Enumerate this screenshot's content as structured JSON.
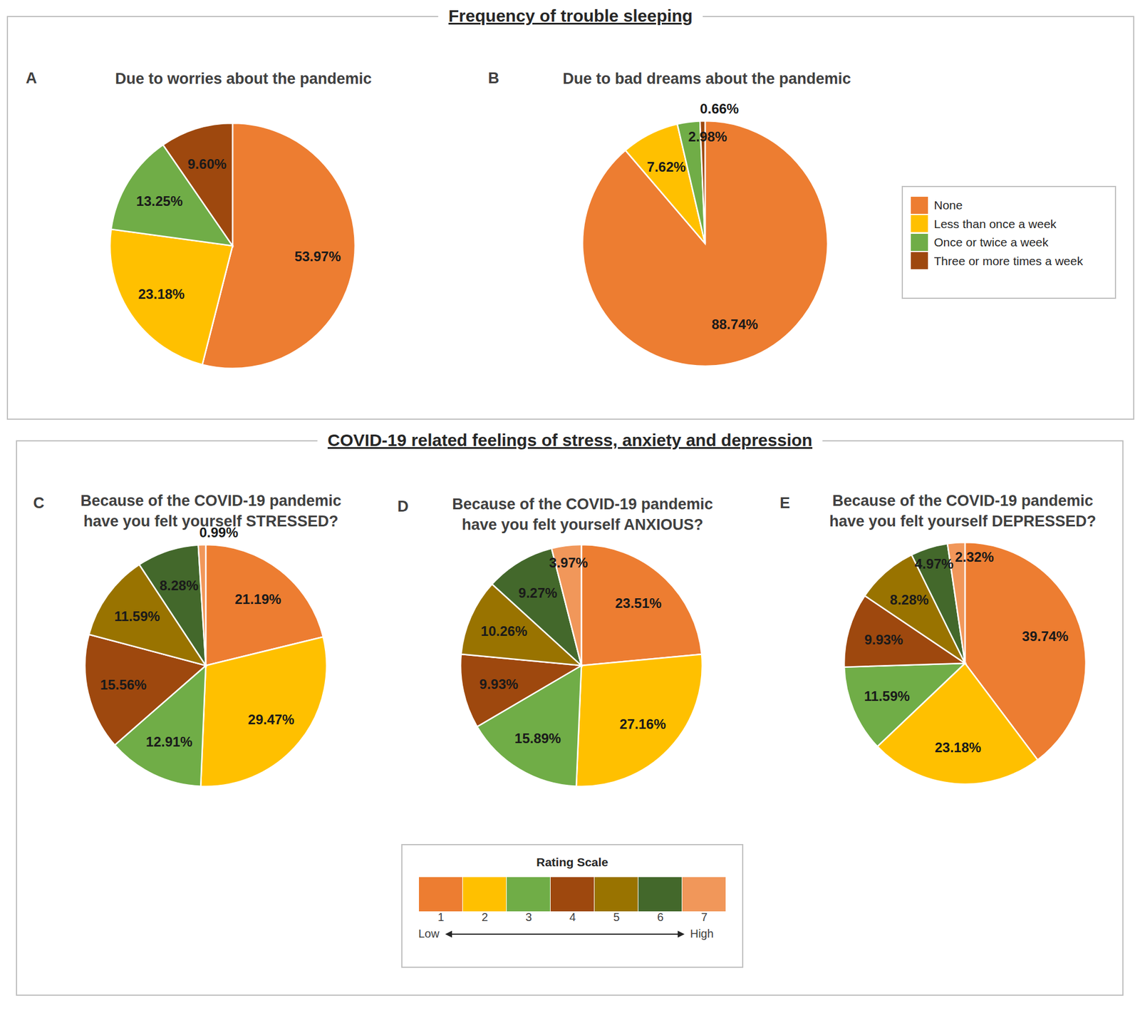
{
  "sections": [
    {
      "title": "Frequency of trouble sleeping",
      "legend_categories": [
        "None",
        "Less than once a week",
        "Once or twice a week",
        "Three or more times a week"
      ],
      "legend_colors": [
        "#ED7D31",
        "#FFC000",
        "#70AD47",
        "#9E480E"
      ]
    },
    {
      "title": "COVID-19 related feelings of stress, anxiety and depression",
      "legend_title": "Rating Scale",
      "legend_categories": [
        "1",
        "2",
        "3",
        "4",
        "5",
        "6",
        "7"
      ],
      "legend_colors": [
        "#ED7D31",
        "#FFC000",
        "#70AD47",
        "#9E480E",
        "#997300",
        "#43682B",
        "#F1975A"
      ],
      "scale_ends": [
        "Low",
        "High"
      ]
    }
  ],
  "chart_data": [
    {
      "type": "pie",
      "panel": "A",
      "title": "Due to worries about the pandemic",
      "categories": [
        "None",
        "Less than once a week",
        "Once or twice a week",
        "Three or more times a week"
      ],
      "values": [
        53.97,
        23.18,
        13.25,
        9.6
      ],
      "value_labels": [
        "53.97%",
        "23.18%",
        "13.25%",
        "9.60%"
      ],
      "colors": [
        "#ED7D31",
        "#FFC000",
        "#70AD47",
        "#9E480E"
      ],
      "data_labels": true
    },
    {
      "type": "pie",
      "panel": "B",
      "title": "Due to bad dreams about the pandemic",
      "categories": [
        "None",
        "Less than once a week",
        "Once or twice a week",
        "Three or more times a week"
      ],
      "values": [
        88.74,
        7.62,
        2.98,
        0.66
      ],
      "value_labels": [
        "88.74%",
        "7.62%",
        "2.98%",
        "0.66%"
      ],
      "colors": [
        "#ED7D31",
        "#FFC000",
        "#70AD47",
        "#9E480E"
      ],
      "data_labels": true
    },
    {
      "type": "pie",
      "panel": "C",
      "title": "Because of the COVID-19 pandemic have you felt yourself STRESSED?",
      "categories": [
        "1",
        "2",
        "3",
        "4",
        "5",
        "6",
        "7"
      ],
      "values": [
        21.19,
        29.47,
        12.91,
        15.56,
        11.59,
        8.28,
        0.99
      ],
      "value_labels": [
        "21.19%",
        "29.47%",
        "12.91%",
        "15.56%",
        "11.59%",
        "8.28%",
        "0.99%"
      ],
      "colors": [
        "#ED7D31",
        "#FFC000",
        "#70AD47",
        "#9E480E",
        "#997300",
        "#43682B",
        "#F1975A"
      ],
      "data_labels": true
    },
    {
      "type": "pie",
      "panel": "D",
      "title": "Because of the COVID-19 pandemic have you felt yourself ANXIOUS?",
      "categories": [
        "1",
        "2",
        "3",
        "4",
        "5",
        "6",
        "7"
      ],
      "values": [
        23.51,
        27.16,
        15.89,
        9.93,
        10.26,
        9.27,
        3.97
      ],
      "value_labels": [
        "23.51%",
        "27.16%",
        "15.89%",
        "9.93%",
        "10.26%",
        "9.27%",
        "3.97%"
      ],
      "colors": [
        "#ED7D31",
        "#FFC000",
        "#70AD47",
        "#9E480E",
        "#997300",
        "#43682B",
        "#F1975A"
      ],
      "data_labels": true
    },
    {
      "type": "pie",
      "panel": "E",
      "title": "Because of the COVID-19 pandemic have you felt yourself DEPRESSED?",
      "categories": [
        "1",
        "2",
        "3",
        "4",
        "5",
        "6",
        "7"
      ],
      "values": [
        39.74,
        23.18,
        11.59,
        9.93,
        8.28,
        4.97,
        2.32
      ],
      "value_labels": [
        "39.74%",
        "23.18%",
        "11.59%",
        "9.93%",
        "8.28%",
        "4.97%",
        "2.32%"
      ],
      "colors": [
        "#ED7D31",
        "#FFC000",
        "#70AD47",
        "#9E480E",
        "#997300",
        "#43682B",
        "#F1975A"
      ],
      "data_labels": true
    }
  ]
}
